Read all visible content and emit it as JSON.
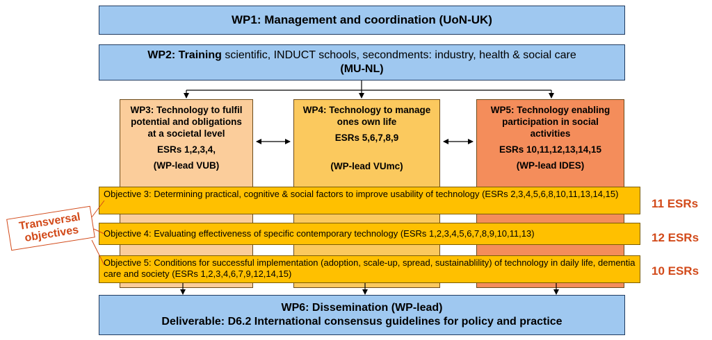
{
  "wp1": {
    "text": "WP1: Management and coordination (UoN-UK)"
  },
  "wp2": {
    "bold": "WP2: Training",
    "rest": " scientific, INDUCT schools, secondments: industry, health & social care",
    "line2": "(MU-NL)"
  },
  "wp3": {
    "title": "WP3: Technology to fulfil potential and obligations at a societal level",
    "esrs": "ESRs 1,2,3,4,",
    "lead": "(WP-lead VUB)"
  },
  "wp4": {
    "title": "WP4: Technology to manage ones own life",
    "esrs": "ESRs 5,6,7,8,9",
    "lead": "(WP-lead VUmc)"
  },
  "wp5": {
    "title": "WP5: Technology enabling participation in social activities",
    "esrs": "ESRs 10,11,12,13,14,15",
    "lead": "(WP-lead IDES)"
  },
  "objectives": [
    {
      "text": "Objective 3: Determining practical, cognitive & social factors to improve usability of technology (ESRs 2,3,4,5,6,8,10,11,13,14,15)",
      "count": "11 ESRs"
    },
    {
      "text": "Objective 4: Evaluating effectiveness of specific contemporary technology (ESRs 1,2,3,4,5,6,7,8,9,10,11,13)",
      "count": "12 ESRs"
    },
    {
      "text": "Objective 5: Conditions for successful implementation (adoption, scale-up, spread, sustainablility) of technology in daily life, dementia care and society (ESRs 1,2,3,4,6,7,9,12,14,15)",
      "count": "10 ESRs"
    }
  ],
  "transversal": {
    "line1": "Transversal",
    "line2": "objectives"
  },
  "wp6": {
    "line1": "WP6: Dissemination (WP-lead)",
    "line2": "Deliverable: D6.2 International consensus guidelines for policy and practice"
  },
  "colors": {
    "blue_box": "#9fc8f0",
    "wp3": "#fbcd9b",
    "wp4": "#fbc95e",
    "wp5": "#f48d5b",
    "objective": "#ffc000",
    "accent_red": "#d24a1a"
  }
}
